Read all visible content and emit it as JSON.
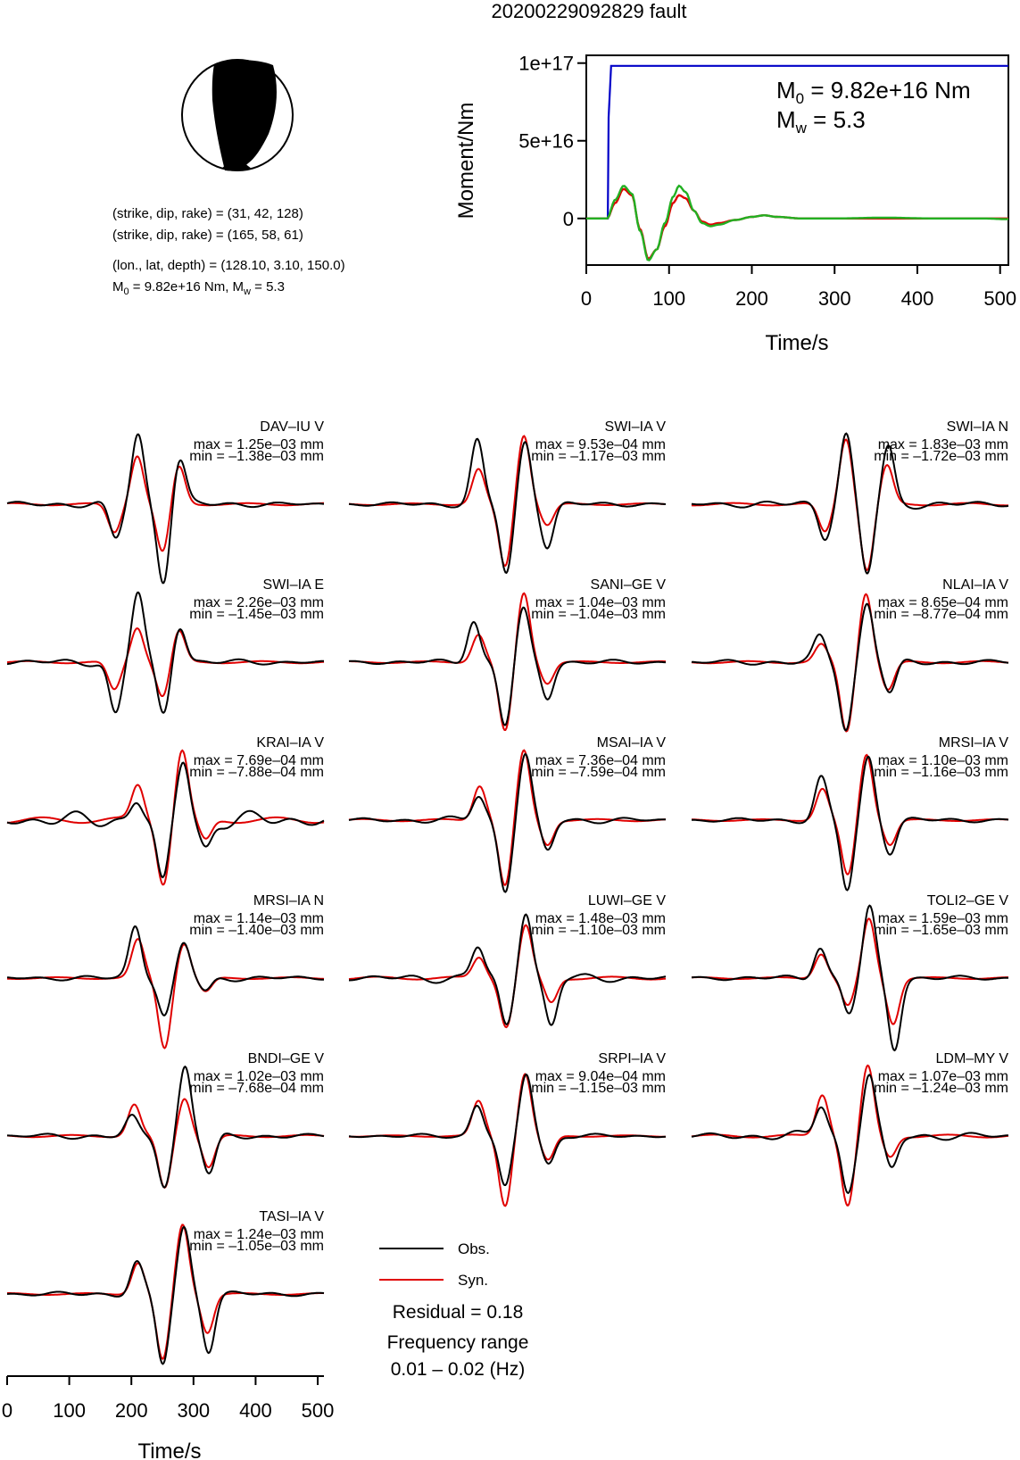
{
  "title": "20200229092829 fault",
  "mechanism": {
    "line1": "(strike, dip, rake) = (31, 42, 128)",
    "line2": "(strike, dip, rake) = (165, 58, 61)",
    "line3": "(lon., lat, depth) = (128.10, 3.10, 150.0)",
    "moment_text": "M0 = 9.82e+16 Nm, Mw = 5.3",
    "strike": [
      31,
      165
    ],
    "dip": [
      42,
      58
    ],
    "rake": [
      128,
      61
    ]
  },
  "moment_panel": {
    "m0_label": "M0 = 9.82e+16 Nm",
    "mw_label": "Mw = 5.3",
    "ylabel": "Moment/Nm",
    "xlabel": "Time/s",
    "xticks": [
      "0",
      "100",
      "200",
      "300",
      "400",
      "500"
    ],
    "yticks": [
      "0",
      "5e+16",
      "1e+17"
    ]
  },
  "traces": [
    {
      "station": "DAV–IU V",
      "max": "max = 1.25e–03 mm",
      "min": "min = –1.38e–03 mm"
    },
    {
      "station": "SWI–IA V",
      "max": "max = 9.53e–04 mm",
      "min": "min = –1.17e–03 mm"
    },
    {
      "station": "SWI–IA N",
      "max": "max = 1.83e–03 mm",
      "min": "min = –1.72e–03 mm"
    },
    {
      "station": "SWI–IA E",
      "max": "max = 2.26e–03 mm",
      "min": "min = –1.45e–03 mm"
    },
    {
      "station": "SANI–GE V",
      "max": "max = 1.04e–03 mm",
      "min": "min = –1.04e–03 mm"
    },
    {
      "station": "NLAI–IA V",
      "max": "max = 8.65e–04 mm",
      "min": "min = –8.77e–04 mm"
    },
    {
      "station": "KRAI–IA V",
      "max": "max = 7.69e–04 mm",
      "min": "min = –7.88e–04 mm"
    },
    {
      "station": "MSAI–IA V",
      "max": "max = 7.36e–04 mm",
      "min": "min = –7.59e–04 mm"
    },
    {
      "station": "MRSI–IA V",
      "max": "max = 1.10e–03 mm",
      "min": "min = –1.16e–03 mm"
    },
    {
      "station": "MRSI–IA N",
      "max": "max = 1.14e–03 mm",
      "min": "min = –1.40e–03 mm"
    },
    {
      "station": "LUWI–GE V",
      "max": "max = 1.48e–03 mm",
      "min": "min = –1.10e–03 mm"
    },
    {
      "station": "TOLI2–GE V",
      "max": "max = 1.59e–03 mm",
      "min": "min = –1.65e–03 mm"
    },
    {
      "station": "BNDI–GE V",
      "max": "max = 1.02e–03 mm",
      "min": "min = –7.68e–04 mm"
    },
    {
      "station": "SRPI–IA V",
      "max": "max = 9.04e–04 mm",
      "min": "min = –1.15e–03 mm"
    },
    {
      "station": "LDM–MY V",
      "max": "max = 1.07e–03 mm",
      "min": "min = –1.24e–03 mm"
    },
    {
      "station": "TASI–IA V",
      "max": "max = 1.24e–03 mm",
      "min": "min = –1.05e–03 mm"
    }
  ],
  "legend": {
    "obs": "Obs.",
    "syn": "Syn."
  },
  "residual": "Residual = 0.18",
  "freq_label": "Frequency range",
  "freq_values": "0.01 – 0.02 (Hz)",
  "bottom_axis": {
    "xlabel": "Time/s",
    "xticks": [
      "0",
      "100",
      "200",
      "300",
      "400",
      "500"
    ]
  },
  "colors": {
    "obs": "#000000",
    "syn": "#e00000",
    "cumulative": "#0000c8",
    "rate_alt": "#22b022"
  },
  "chart_data": [
    {
      "type": "line",
      "title": "20200229092829 fault",
      "xlabel": "Time/s",
      "ylabel": "Moment/Nm",
      "xlim": [
        0,
        510
      ],
      "ylim": [
        -3e+16,
        1.05e+17
      ],
      "series": [
        {
          "x": [
            0,
            26,
            27,
            30,
            510
          ],
          "y": [
            0,
            0,
            6.5e+16,
            9.82e+16,
            9.82e+16
          ]
        },
        {
          "x": [
            0,
            25,
            35,
            45,
            55,
            65,
            75,
            85,
            95,
            105,
            112,
            120,
            130,
            140,
            150,
            160,
            180,
            200,
            215,
            230,
            260,
            300,
            360,
            420,
            480,
            510
          ],
          "y": [
            0,
            0,
            1.2e+16,
            2.1e+16,
            1.6e+16,
            -8000000000000000.0,
            -2.7e+16,
            -2e+16,
            -3000000000000000.0,
            1.4e+16,
            2.1e+16,
            1.7e+16,
            5000000000000000.0,
            -3000000000000000.0,
            -5000000000000000.0,
            -4000000000000000.0,
            -1000000000000000.0,
            1000000000000000.0,
            2000000000000000.0,
            1000000000000000.0,
            0,
            0,
            500000000000000.0,
            0,
            0,
            -500000000000000.0
          ]
        },
        {
          "x": [
            0,
            25,
            35,
            45,
            55,
            65,
            75,
            85,
            95,
            105,
            112,
            120,
            130,
            140,
            150,
            160,
            180,
            200,
            215,
            230,
            260,
            300,
            360,
            420,
            480,
            510
          ],
          "y": [
            0,
            0,
            1e+16,
            1.9e+16,
            1.5e+16,
            -7000000000000000.0,
            -2.6e+16,
            -2e+16,
            -5000000000000000.0,
            1e+16,
            1.5e+16,
            1.3e+16,
            5000000000000000.0,
            -2000000000000000.0,
            -4000000000000000.0,
            -3000000000000000.0,
            -1000000000000000.0,
            1000000000000000.0,
            2000000000000000.0,
            1000000000000000.0,
            0,
            0,
            0,
            0,
            0,
            0
          ]
        }
      ]
    },
    {
      "type": "line",
      "xlabel": "Time/s",
      "xlim": [
        0,
        510
      ],
      "series": [
        {
          "name": "Obs.",
          "station": "DAV–IU V",
          "x": [
            0,
            100,
            160,
            180,
            195,
            220,
            250,
            300,
            510
          ],
          "y": [
            0,
            0,
            -0.25,
            0.85,
            1.0,
            -1.1,
            0.65,
            0.05,
            0
          ]
        },
        {
          "name": "Syn.",
          "station": "DAV–IU V",
          "x": [
            0,
            100,
            160,
            180,
            195,
            220,
            250,
            300,
            510
          ],
          "y": [
            0,
            0,
            -0.2,
            0.55,
            0.7,
            -0.7,
            0.55,
            0,
            0
          ]
        }
      ]
    }
  ]
}
